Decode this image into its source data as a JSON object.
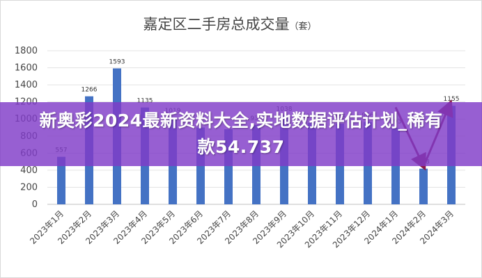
{
  "banner": {
    "text": "新奥彩2024最新资料大全,实地数据评估计划_稀有款54.737"
  },
  "chart_data": {
    "type": "bar",
    "title": "嘉定区二手房总成交量",
    "title_unit": "（套）",
    "categories": [
      "2023年1月",
      "2023年2月",
      "2023年3月",
      "2023年4月",
      "2023年5月",
      "2023年6月",
      "2023年7月",
      "2023年8月",
      "2023年9月",
      "2023年10月",
      "2023年11月",
      "2023年12月",
      "2024年1月",
      "2024年2月",
      "2024年3月"
    ],
    "values": [
      557,
      1266,
      1593,
      1135,
      1019,
      900,
      880,
      930,
      1038,
      954,
      945,
      966,
      893,
      418,
      1155
    ],
    "data_labels": [
      "557",
      "1266",
      "1593",
      "1135",
      "1019",
      "",
      "",
      "930",
      "1038",
      "954",
      "945",
      "966",
      "893",
      "418",
      "1155"
    ],
    "yticks": [
      "0",
      "200",
      "400",
      "600",
      "800",
      "1000",
      "1200",
      "1400",
      "1600",
      "1800"
    ],
    "ylim": [
      0,
      1800
    ],
    "grid": true,
    "bar_color": "#4472c4",
    "annotation_color": "#8b1a4a"
  }
}
